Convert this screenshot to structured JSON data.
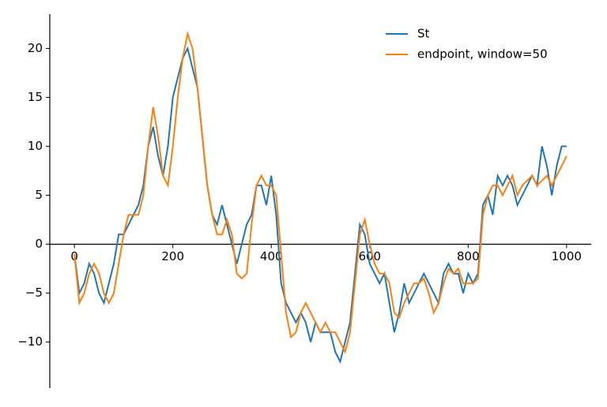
{
  "chart_data": {
    "type": "line",
    "x": [
      0,
      10,
      20,
      30,
      40,
      50,
      60,
      70,
      80,
      90,
      100,
      110,
      120,
      130,
      140,
      150,
      160,
      170,
      180,
      190,
      200,
      210,
      220,
      230,
      240,
      250,
      260,
      270,
      280,
      290,
      300,
      310,
      320,
      330,
      340,
      350,
      360,
      370,
      380,
      390,
      400,
      410,
      420,
      430,
      440,
      450,
      460,
      470,
      480,
      490,
      500,
      510,
      520,
      530,
      540,
      550,
      560,
      570,
      580,
      590,
      600,
      610,
      620,
      630,
      640,
      650,
      660,
      670,
      680,
      690,
      700,
      710,
      720,
      730,
      740,
      750,
      760,
      770,
      780,
      790,
      800,
      810,
      820,
      830,
      840,
      850,
      860,
      870,
      880,
      890,
      900,
      910,
      920,
      930,
      940,
      950,
      960,
      970,
      980,
      990,
      1000
    ],
    "series": [
      {
        "name": "St",
        "color": "#1f77b4",
        "values": [
          -1,
          -5,
          -4,
          -2,
          -3,
          -5,
          -6,
          -4,
          -2,
          1,
          1,
          2,
          3,
          4,
          6,
          10,
          12,
          9,
          7,
          10,
          15,
          17,
          19,
          20,
          18,
          16,
          11,
          6,
          3,
          2,
          4,
          2,
          0,
          -2,
          0,
          2,
          3,
          6,
          6,
          4,
          7,
          3,
          -4,
          -6,
          -7,
          -8,
          -7,
          -8,
          -10,
          -8,
          -9,
          -9,
          -9,
          -11,
          -12,
          -10,
          -8,
          -3,
          2,
          1,
          -2,
          -3,
          -4,
          -3,
          -6,
          -9,
          -7,
          -4,
          -6,
          -5,
          -4,
          -3,
          -4,
          -5,
          -6,
          -3,
          -2,
          -3,
          -3,
          -5,
          -3,
          -4,
          -3,
          4,
          5,
          3,
          7,
          6,
          7,
          6,
          4,
          5,
          6,
          7,
          6,
          10,
          8,
          5,
          8,
          10,
          10
        ]
      },
      {
        "name": "endpoint, window=50",
        "color": "#ff7f0e",
        "values": [
          -1,
          -6,
          -5,
          -3,
          -2,
          -3,
          -5,
          -6,
          -5,
          -2,
          1,
          3,
          3,
          3,
          5,
          10,
          14,
          11,
          7,
          6,
          10,
          15,
          19,
          21.5,
          20,
          16,
          11,
          6,
          3,
          1,
          1,
          2.5,
          1,
          -3,
          -3.5,
          -3,
          2,
          6,
          7,
          6,
          6,
          5,
          -1,
          -7,
          -9.5,
          -9,
          -7,
          -6,
          -7,
          -8,
          -9,
          -8,
          -9,
          -9,
          -10,
          -11,
          -9,
          -4,
          1,
          2.5,
          0,
          -2,
          -3,
          -3,
          -4,
          -7,
          -7.5,
          -6,
          -5,
          -4,
          -4,
          -3.5,
          -5,
          -7,
          -6,
          -4,
          -2.5,
          -3,
          -2.5,
          -4,
          -4,
          -4,
          -3.5,
          3,
          5,
          6,
          6,
          5,
          6,
          7,
          5,
          6,
          6.5,
          7,
          6,
          6.5,
          7,
          6,
          7,
          8,
          9
        ]
      }
    ],
    "xlim": [
      -50,
      1050
    ],
    "ylim": [
      -14.7,
      23.5
    ],
    "xticks": [
      0,
      200,
      400,
      600,
      800,
      1000
    ],
    "yticks": [
      {
        "value": -10,
        "label": "−10"
      },
      {
        "value": -5,
        "label": "−5"
      },
      0,
      5,
      10,
      15,
      20
    ],
    "legend": "upper right"
  }
}
